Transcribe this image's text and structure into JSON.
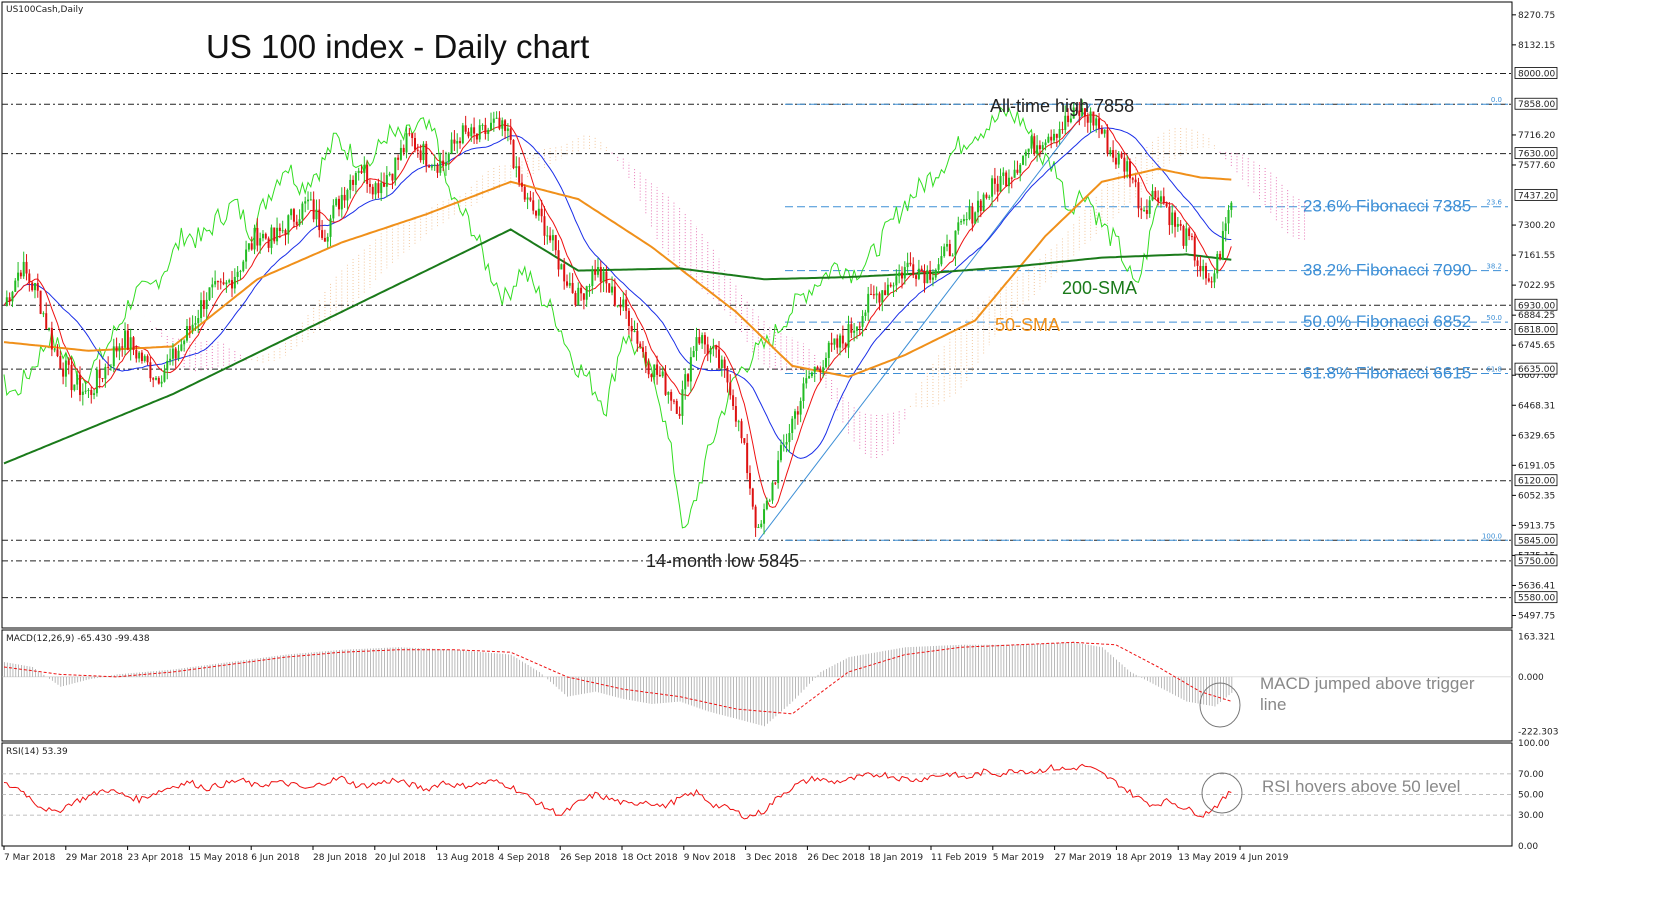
{
  "chart_data": {
    "type": "candlestick",
    "symbol_label": "US100Cash,Daily",
    "title": "US 100 index - Daily chart",
    "price_axis": {
      "ylim": [
        5440,
        8330
      ],
      "ticks": [
        "8270.75",
        "8132.15",
        "7716.20",
        "7577.60",
        "7300.20",
        "7161.55",
        "7022.95",
        "6884.25",
        "6745.65",
        "6607.00",
        "6468.31",
        "6329.65",
        "6191.05",
        "6052.35",
        "5913.75",
        "5775.15",
        "5636.41",
        "5497.75"
      ],
      "highlighted": [
        "8000.00",
        "7858.00",
        "7630.00",
        "7437.20",
        "6930.00",
        "6818.00",
        "6635.00",
        "6120.00",
        "5845.00",
        "5750.00",
        "5580.00"
      ]
    },
    "x_ticks": [
      "7 Mar 2018",
      "29 Mar 2018",
      "23 Apr 2018",
      "15 May 2018",
      "6 Jun 2018",
      "28 Jun 2018",
      "20 Jul 2018",
      "13 Aug 2018",
      "4 Sep 2018",
      "26 Sep 2018",
      "18 Oct 2018",
      "9 Nov 2018",
      "3 Dec 2018",
      "26 Dec 2018",
      "18 Jan 2019",
      "11 Feb 2019",
      "5 Mar 2019",
      "27 Mar 2019",
      "18 Apr 2019",
      "13 May 2019",
      "4 Jun 2019"
    ],
    "horizontal_levels": [
      8000,
      7858,
      7630,
      6930,
      6818,
      6635,
      6120,
      5845,
      5750,
      5580
    ],
    "fibonacci": {
      "high": 7858,
      "low": 5845,
      "levels": [
        {
          "ratio": "0.0",
          "value": 7858
        },
        {
          "ratio": "23.6",
          "value": 7385,
          "label": "23.6% Fibonacci 7385"
        },
        {
          "ratio": "38.2",
          "value": 7090,
          "label": "38.2% Fibonacci 7090"
        },
        {
          "ratio": "50.0",
          "value": 6852,
          "label": "50.0% Fibonacci 6852"
        },
        {
          "ratio": "61.8",
          "value": 6615,
          "label": "61.8% Fibonacci 6615"
        },
        {
          "ratio": "100.0",
          "value": 5845
        }
      ]
    },
    "annotations": {
      "ath": "All-time high 7858",
      "low": "14-month low 5845",
      "sma200": "200-SMA",
      "sma50": "50-SMA",
      "macd_note": "MACD jumped above trigger line",
      "rsi_note": "RSI hovers above 50 level"
    },
    "close_path": [
      [
        0,
        6930
      ],
      [
        6,
        7110
      ],
      [
        12,
        6980
      ],
      [
        18,
        6720
      ],
      [
        24,
        6580
      ],
      [
        30,
        6520
      ],
      [
        36,
        6640
      ],
      [
        42,
        6780
      ],
      [
        48,
        6700
      ],
      [
        54,
        6600
      ],
      [
        60,
        6680
      ],
      [
        66,
        6820
      ],
      [
        72,
        6980
      ],
      [
        78,
        7000
      ],
      [
        84,
        7120
      ],
      [
        90,
        7260
      ],
      [
        96,
        7230
      ],
      [
        102,
        7330
      ],
      [
        108,
        7400
      ],
      [
        114,
        7270
      ],
      [
        120,
        7440
      ],
      [
        126,
        7580
      ],
      [
        132,
        7480
      ],
      [
        138,
        7560
      ],
      [
        144,
        7700
      ],
      [
        150,
        7620
      ],
      [
        156,
        7580
      ],
      [
        162,
        7720
      ],
      [
        168,
        7700
      ],
      [
        174,
        7760
      ],
      [
        180,
        7700
      ],
      [
        182,
        7520
      ],
      [
        186,
        7400
      ],
      [
        192,
        7300
      ],
      [
        198,
        7100
      ],
      [
        204,
        6960
      ],
      [
        210,
        7100
      ],
      [
        216,
        6980
      ],
      [
        222,
        6880
      ],
      [
        228,
        6680
      ],
      [
        234,
        6580
      ],
      [
        240,
        6460
      ],
      [
        246,
        6800
      ],
      [
        252,
        6700
      ],
      [
        258,
        6560
      ],
      [
        264,
        6180
      ],
      [
        268,
        5860
      ],
      [
        274,
        6150
      ],
      [
        280,
        6400
      ],
      [
        286,
        6600
      ],
      [
        292,
        6700
      ],
      [
        298,
        6760
      ],
      [
        304,
        6880
      ],
      [
        310,
        6980
      ],
      [
        316,
        7050
      ],
      [
        322,
        7120
      ],
      [
        328,
        7080
      ],
      [
        334,
        7150
      ],
      [
        340,
        7280
      ],
      [
        346,
        7400
      ],
      [
        352,
        7480
      ],
      [
        358,
        7560
      ],
      [
        364,
        7650
      ],
      [
        370,
        7720
      ],
      [
        376,
        7760
      ],
      [
        382,
        7820
      ],
      [
        388,
        7780
      ],
      [
        394,
        7620
      ],
      [
        400,
        7560
      ],
      [
        404,
        7380
      ],
      [
        410,
        7460
      ],
      [
        416,
        7300
      ],
      [
        422,
        7200
      ],
      [
        428,
        7000
      ],
      [
        432,
        7180
      ],
      [
        436,
        7420
      ]
    ],
    "sma200_path": [
      [
        0,
        6200
      ],
      [
        60,
        6520
      ],
      [
        120,
        6900
      ],
      [
        180,
        7280
      ],
      [
        204,
        7090
      ],
      [
        240,
        7100
      ],
      [
        270,
        7050
      ],
      [
        300,
        7060
      ],
      [
        330,
        7080
      ],
      [
        360,
        7110
      ],
      [
        390,
        7150
      ],
      [
        420,
        7165
      ],
      [
        436,
        7140
      ]
    ],
    "sma50_path": [
      [
        0,
        6760
      ],
      [
        30,
        6720
      ],
      [
        60,
        6740
      ],
      [
        90,
        7050
      ],
      [
        120,
        7220
      ],
      [
        150,
        7350
      ],
      [
        180,
        7500
      ],
      [
        204,
        7420
      ],
      [
        230,
        7200
      ],
      [
        260,
        6900
      ],
      [
        280,
        6650
      ],
      [
        300,
        6600
      ],
      [
        320,
        6700
      ],
      [
        345,
        6860
      ],
      [
        370,
        7250
      ],
      [
        390,
        7500
      ],
      [
        410,
        7560
      ],
      [
        425,
        7520
      ],
      [
        436,
        7510
      ]
    ],
    "macd": {
      "label": "MACD(12,26,9) -65.430 -99.438",
      "ylim": [
        -260,
        190
      ],
      "ticks": [
        "163.321",
        "0.000",
        "-222.303"
      ],
      "hist_path": [
        [
          0,
          60
        ],
        [
          10,
          40
        ],
        [
          20,
          -40
        ],
        [
          30,
          -10
        ],
        [
          40,
          10
        ],
        [
          60,
          30
        ],
        [
          80,
          60
        ],
        [
          100,
          90
        ],
        [
          120,
          110
        ],
        [
          140,
          120
        ],
        [
          160,
          110
        ],
        [
          180,
          90
        ],
        [
          190,
          20
        ],
        [
          200,
          -80
        ],
        [
          210,
          -60
        ],
        [
          220,
          -90
        ],
        [
          230,
          -110
        ],
        [
          240,
          -100
        ],
        [
          250,
          -140
        ],
        [
          260,
          -170
        ],
        [
          270,
          -200
        ],
        [
          280,
          -100
        ],
        [
          290,
          20
        ],
        [
          300,
          80
        ],
        [
          320,
          120
        ],
        [
          340,
          130
        ],
        [
          360,
          130
        ],
        [
          380,
          140
        ],
        [
          390,
          120
        ],
        [
          400,
          20
        ],
        [
          410,
          -40
        ],
        [
          420,
          -100
        ],
        [
          430,
          -120
        ],
        [
          436,
          -65
        ]
      ],
      "signal_path": [
        [
          0,
          40
        ],
        [
          20,
          10
        ],
        [
          40,
          0
        ],
        [
          60,
          20
        ],
        [
          80,
          50
        ],
        [
          100,
          80
        ],
        [
          120,
          100
        ],
        [
          140,
          110
        ],
        [
          160,
          110
        ],
        [
          180,
          100
        ],
        [
          200,
          0
        ],
        [
          220,
          -50
        ],
        [
          240,
          -80
        ],
        [
          260,
          -130
        ],
        [
          280,
          -150
        ],
        [
          300,
          20
        ],
        [
          320,
          90
        ],
        [
          340,
          120
        ],
        [
          360,
          130
        ],
        [
          380,
          140
        ],
        [
          395,
          130
        ],
        [
          410,
          40
        ],
        [
          425,
          -60
        ],
        [
          436,
          -99
        ]
      ]
    },
    "rsi": {
      "label": "RSI(14) 53.39",
      "ylim": [
        0,
        100
      ],
      "ticks": [
        "100.00",
        "70.00",
        "50.00",
        "30.00",
        "0.00"
      ],
      "path": [
        [
          0,
          60
        ],
        [
          6,
          55
        ],
        [
          12,
          40
        ],
        [
          18,
          32
        ],
        [
          24,
          42
        ],
        [
          30,
          48
        ],
        [
          36,
          55
        ],
        [
          42,
          50
        ],
        [
          48,
          45
        ],
        [
          54,
          52
        ],
        [
          60,
          58
        ],
        [
          66,
          62
        ],
        [
          72,
          56
        ],
        [
          78,
          60
        ],
        [
          84,
          64
        ],
        [
          90,
          58
        ],
        [
          96,
          62
        ],
        [
          102,
          60
        ],
        [
          108,
          55
        ],
        [
          114,
          62
        ],
        [
          120,
          66
        ],
        [
          126,
          58
        ],
        [
          132,
          60
        ],
        [
          138,
          64
        ],
        [
          144,
          60
        ],
        [
          150,
          55
        ],
        [
          156,
          62
        ],
        [
          162,
          58
        ],
        [
          168,
          60
        ],
        [
          174,
          63
        ],
        [
          180,
          58
        ],
        [
          186,
          48
        ],
        [
          192,
          38
        ],
        [
          198,
          30
        ],
        [
          204,
          42
        ],
        [
          210,
          50
        ],
        [
          216,
          45
        ],
        [
          222,
          40
        ],
        [
          228,
          44
        ],
        [
          234,
          38
        ],
        [
          240,
          46
        ],
        [
          246,
          52
        ],
        [
          252,
          40
        ],
        [
          258,
          36
        ],
        [
          264,
          28
        ],
        [
          270,
          34
        ],
        [
          276,
          50
        ],
        [
          282,
          60
        ],
        [
          288,
          66
        ],
        [
          294,
          62
        ],
        [
          300,
          64
        ],
        [
          306,
          68
        ],
        [
          312,
          70
        ],
        [
          318,
          66
        ],
        [
          324,
          64
        ],
        [
          330,
          68
        ],
        [
          336,
          70
        ],
        [
          342,
          66
        ],
        [
          348,
          72
        ],
        [
          354,
          70
        ],
        [
          360,
          74
        ],
        [
          366,
          72
        ],
        [
          372,
          76
        ],
        [
          378,
          74
        ],
        [
          384,
          78
        ],
        [
          390,
          70
        ],
        [
          396,
          60
        ],
        [
          402,
          48
        ],
        [
          408,
          40
        ],
        [
          414,
          44
        ],
        [
          420,
          36
        ],
        [
          426,
          30
        ],
        [
          432,
          42
        ],
        [
          436,
          53
        ]
      ]
    },
    "ichimoku_note": "",
    "pivot": ""
  }
}
